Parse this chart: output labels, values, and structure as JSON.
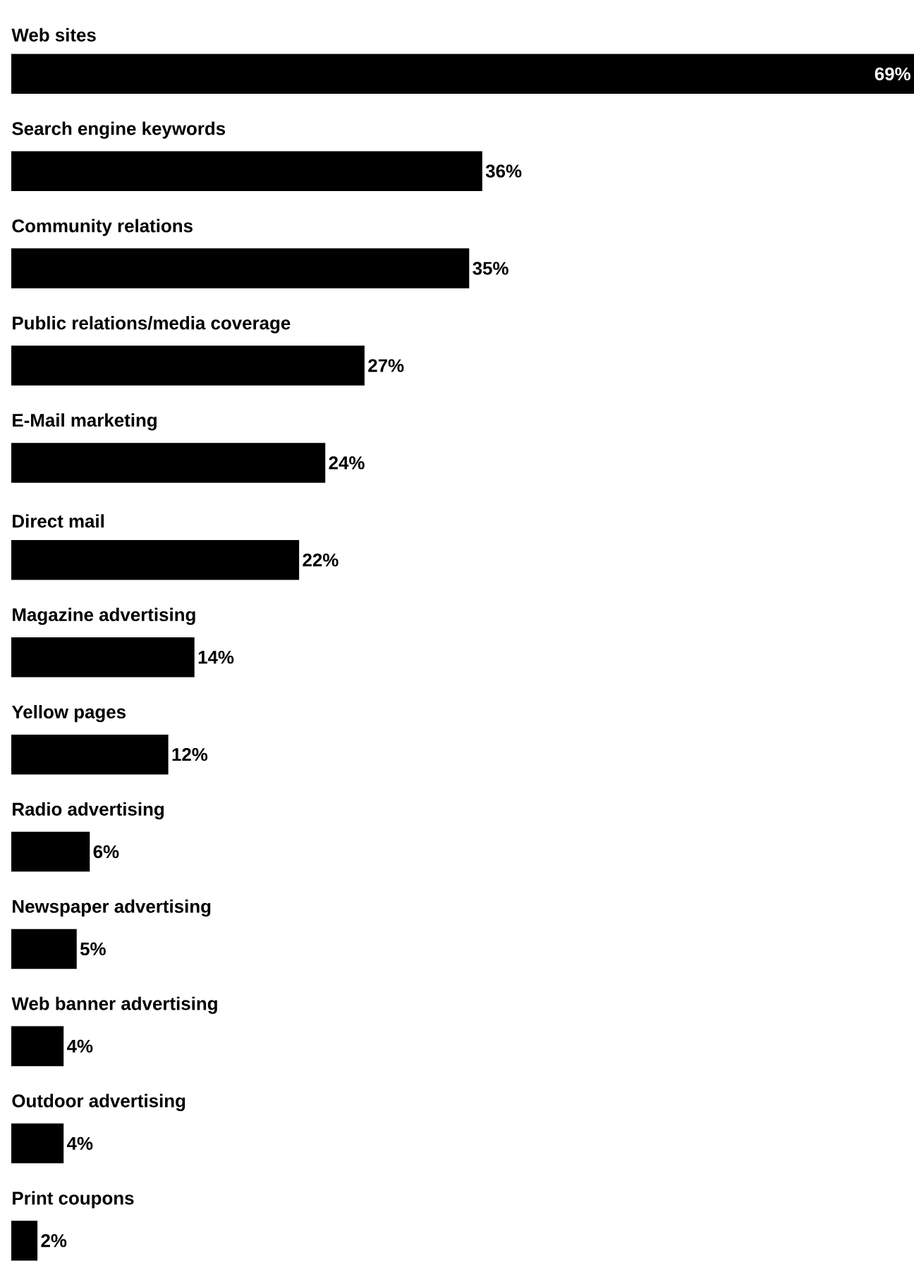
{
  "chart_data": {
    "type": "bar",
    "orientation": "horizontal",
    "categories": [
      "Web sites",
      "Search engine keywords",
      "Community relations",
      "Public relations/media coverage",
      "E-Mail marketing",
      "Direct mail",
      "Magazine advertising",
      "Yellow pages",
      "Radio advertising",
      "Newspaper advertising",
      "Web banner advertising",
      "Outdoor advertising",
      "Print coupons"
    ],
    "values": [
      69,
      36,
      35,
      27,
      24,
      22,
      14,
      12,
      6,
      5,
      4,
      4,
      2
    ],
    "value_labels": [
      "69%",
      "36%",
      "35%",
      "27%",
      "24%",
      "22%",
      "14%",
      "12%",
      "6%",
      "5%",
      "4%",
      "4%",
      "2%"
    ],
    "color": "#000000"
  }
}
